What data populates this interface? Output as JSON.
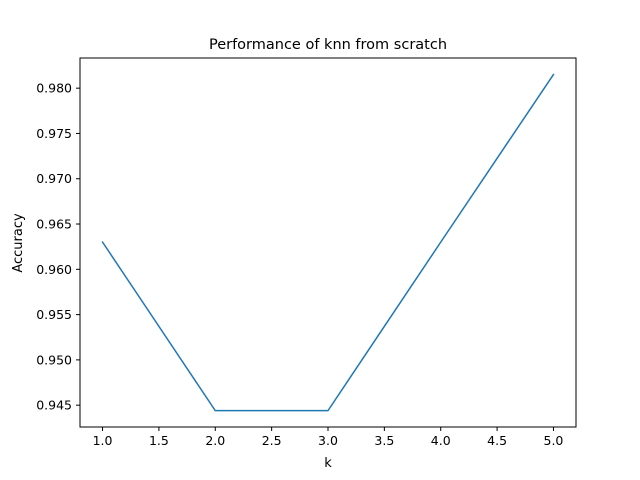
{
  "chart_data": {
    "type": "line",
    "title": "Performance of knn  from scratch",
    "xlabel": "k",
    "ylabel": "Accuracy",
    "x": [
      1,
      2,
      3,
      4,
      5
    ],
    "series": [
      {
        "values": [
          0.963,
          0.9444,
          0.9444,
          0.963,
          0.9815
        ],
        "color": "#1f77b4"
      }
    ],
    "xlim": [
      0.8,
      5.2
    ],
    "ylim": [
      0.94259,
      0.98333
    ],
    "xticks": [
      1.0,
      1.5,
      2.0,
      2.5,
      3.0,
      3.5,
      4.0,
      4.5,
      5.0
    ],
    "xtick_labels": [
      "1.0",
      "1.5",
      "2.0",
      "2.5",
      "3.0",
      "3.5",
      "4.0",
      "4.5",
      "5.0"
    ],
    "yticks": [
      0.945,
      0.95,
      0.955,
      0.96,
      0.965,
      0.97,
      0.975,
      0.98
    ],
    "ytick_labels": [
      "0.945",
      "0.950",
      "0.955",
      "0.960",
      "0.965",
      "0.970",
      "0.975",
      "0.980"
    ],
    "grid": false,
    "legend": false
  }
}
